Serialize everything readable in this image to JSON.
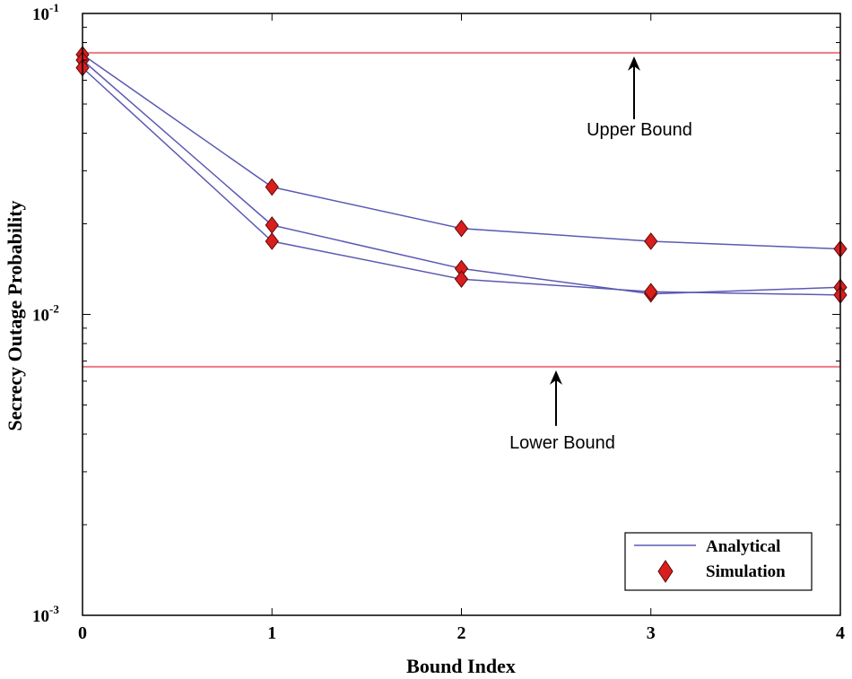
{
  "chart_data": {
    "type": "line",
    "xlabel": "Bound Index",
    "ylabel": "Secrecy Outage Probability",
    "x": [
      0,
      1,
      2,
      3,
      4
    ],
    "xlim": [
      0,
      4
    ],
    "ylim": [
      0.001,
      0.1
    ],
    "yscale": "log",
    "xticks": [
      "0",
      "1",
      "2",
      "3",
      "4"
    ],
    "yticks": [
      {
        "base": "10",
        "exp": "-1",
        "value": 0.1
      },
      {
        "base": "10",
        "exp": "-2",
        "value": 0.01
      },
      {
        "base": "10",
        "exp": "-3",
        "value": 0.001
      }
    ],
    "series": [
      {
        "values": [
          0.073,
          0.0265,
          0.0193,
          0.0175,
          0.0165
        ]
      },
      {
        "values": [
          0.07,
          0.0198,
          0.0142,
          0.0117,
          0.0123
        ]
      },
      {
        "values": [
          0.066,
          0.0175,
          0.0131,
          0.0119,
          0.0116
        ]
      }
    ],
    "reference_lines": [
      {
        "value": 0.074,
        "label": "Upper Bound"
      },
      {
        "value": 0.0067,
        "label": "Lower Bound"
      }
    ],
    "legend": {
      "placement": "bottom-right",
      "entries": [
        {
          "label": "Analytical",
          "style": "line"
        },
        {
          "label": "Simulation",
          "style": "marker"
        }
      ]
    },
    "colors": {
      "line": "#5a5ab4",
      "marker_fill": "#d91e1e",
      "marker_stroke": "#5a0a0a",
      "reference": "#ee7a86"
    },
    "grid": false
  }
}
